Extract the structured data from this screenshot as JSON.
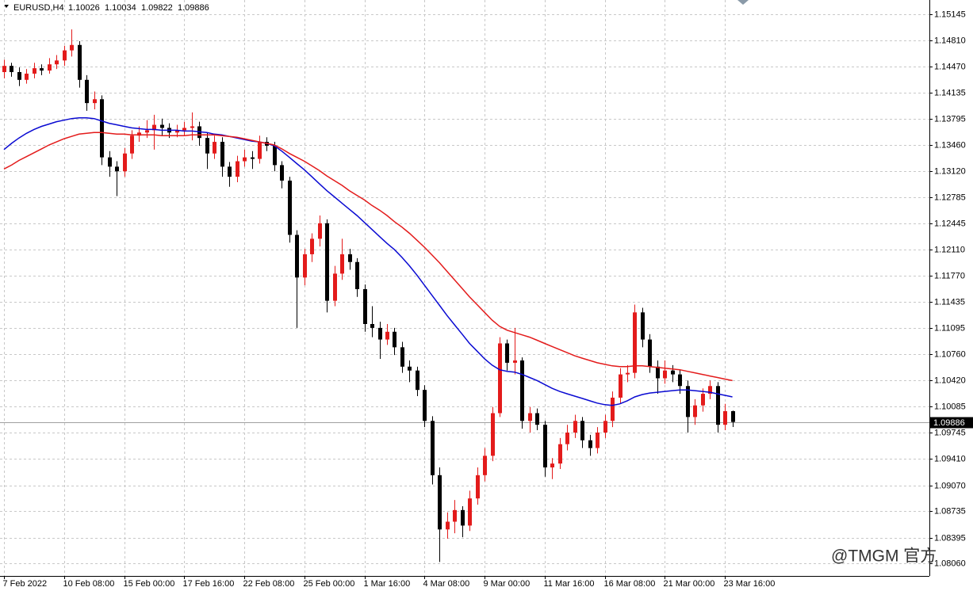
{
  "chart_data": {
    "type": "candlestick",
    "symbol": "EURUSD,H4",
    "watermark": "@TMGM 官方",
    "up_color": "#e31b1b",
    "down_color": "#000000",
    "ylim": [
      1.079,
      1.1533
    ],
    "yticks": [
      1.15145,
      {
        "value": 1.1481,
        "label": "1.14810"
      },
      {
        "value": 1.1447,
        "label": "1.14470"
      },
      1.14135,
      1.13795,
      {
        "value": 1.1346,
        "label": "1.13460"
      },
      {
        "value": 1.1312,
        "label": "1.13120"
      },
      1.12785,
      1.12445,
      {
        "value": 1.1211,
        "label": "1.12110"
      },
      {
        "value": 1.1177,
        "label": "1.11770"
      },
      1.11435,
      1.11095,
      {
        "value": 1.1076,
        "label": "1.10760"
      },
      {
        "value": 1.1042,
        "label": "1.10420"
      },
      1.10085,
      1.09745,
      {
        "value": 1.0941,
        "label": "1.09410"
      },
      {
        "value": 1.0907,
        "label": "1.09070"
      },
      1.08735,
      1.08395,
      {
        "value": 1.0806,
        "label": "1.08060"
      }
    ],
    "grid": true,
    "last_price": 1.09886,
    "categories": [
      "7 Feb 2022",
      null,
      null,
      null,
      null,
      null,
      null,
      null,
      "10 Feb 08:00",
      null,
      null,
      null,
      null,
      null,
      null,
      null,
      "15 Feb 00:00",
      null,
      null,
      null,
      null,
      null,
      null,
      null,
      "17 Feb 16:00",
      null,
      null,
      null,
      null,
      null,
      null,
      null,
      "22 Feb 08:00",
      null,
      null,
      null,
      null,
      null,
      null,
      null,
      "25 Feb 00:00",
      null,
      null,
      null,
      null,
      null,
      null,
      null,
      "1 Mar 16:00",
      null,
      null,
      null,
      null,
      null,
      null,
      null,
      "4 Mar 08:00",
      null,
      null,
      null,
      null,
      null,
      null,
      null,
      "9 Mar 00:00",
      null,
      null,
      null,
      null,
      null,
      null,
      null,
      "11 Mar 16:00",
      null,
      null,
      null,
      null,
      null,
      null,
      null,
      "16 Mar 08:00",
      null,
      null,
      null,
      null,
      null,
      null,
      null,
      "21 Mar 00:00",
      null,
      null,
      null,
      null,
      null,
      null,
      null,
      "23 Mar 16:00",
      null
    ],
    "ohlc": [
      [
        1.144,
        1.1456,
        1.1432,
        1.1448
      ],
      [
        1.1448,
        1.1452,
        1.1434,
        1.144
      ],
      [
        1.144,
        1.1446,
        1.1422,
        1.143
      ],
      [
        1.143,
        1.1444,
        1.1425,
        1.1438
      ],
      [
        1.1438,
        1.1452,
        1.1432,
        1.1445
      ],
      [
        1.1445,
        1.145,
        1.1436,
        1.1442
      ],
      [
        1.1442,
        1.1458,
        1.1438,
        1.145
      ],
      [
        1.145,
        1.1462,
        1.1444,
        1.1455
      ],
      [
        1.1455,
        1.1474,
        1.1448,
        1.1468
      ],
      [
        1.1468,
        1.1495,
        1.146,
        1.1475
      ],
      [
        1.1475,
        1.148,
        1.142,
        1.143
      ],
      [
        1.143,
        1.1436,
        1.139,
        1.14
      ],
      [
        1.14,
        1.1415,
        1.1392,
        1.1405
      ],
      [
        1.1405,
        1.141,
        1.132,
        1.133
      ],
      [
        1.133,
        1.1338,
        1.1305,
        1.1318
      ],
      [
        1.1318,
        1.1325,
        1.128,
        1.1312
      ],
      [
        1.1312,
        1.1342,
        1.1305,
        1.1335
      ],
      [
        1.1335,
        1.1365,
        1.1328,
        1.1358
      ],
      [
        1.1358,
        1.137,
        1.135,
        1.1362
      ],
      [
        1.1362,
        1.1378,
        1.1355,
        1.1365
      ],
      [
        1.1365,
        1.1385,
        1.134,
        1.1372
      ],
      [
        1.1372,
        1.138,
        1.1358,
        1.1368
      ],
      [
        1.1368,
        1.1374,
        1.1355,
        1.1362
      ],
      [
        1.1362,
        1.1372,
        1.1356,
        1.1365
      ],
      [
        1.1365,
        1.1376,
        1.1358,
        1.1368
      ],
      [
        1.1368,
        1.1388,
        1.1352,
        1.137
      ],
      [
        1.137,
        1.1376,
        1.1345,
        1.1355
      ],
      [
        1.1355,
        1.1362,
        1.1315,
        1.1335
      ],
      [
        1.1335,
        1.1358,
        1.1328,
        1.135
      ],
      [
        1.135,
        1.1356,
        1.1305,
        1.1318
      ],
      [
        1.1318,
        1.1324,
        1.1292,
        1.1305
      ],
      [
        1.1305,
        1.1332,
        1.1298,
        1.1325
      ],
      [
        1.1325,
        1.134,
        1.1318,
        1.133
      ],
      [
        1.133,
        1.1338,
        1.1315,
        1.1328
      ],
      [
        1.1328,
        1.1358,
        1.1322,
        1.135
      ],
      [
        1.135,
        1.1356,
        1.1338,
        1.1345
      ],
      [
        1.1345,
        1.135,
        1.1312,
        1.132
      ],
      [
        1.132,
        1.1325,
        1.129,
        1.13
      ],
      [
        1.13,
        1.1305,
        1.122,
        1.123
      ],
      [
        1.123,
        1.1236,
        1.111,
        1.1175
      ],
      [
        1.1175,
        1.1212,
        1.1165,
        1.1205
      ],
      [
        1.1205,
        1.1232,
        1.1195,
        1.1225
      ],
      [
        1.1225,
        1.1255,
        1.1215,
        1.1245
      ],
      [
        1.1245,
        1.125,
        1.113,
        1.1145
      ],
      [
        1.1145,
        1.119,
        1.1138,
        1.118
      ],
      [
        1.118,
        1.1225,
        1.1172,
        1.1205
      ],
      [
        1.1205,
        1.1212,
        1.1185,
        1.1195
      ],
      [
        1.1195,
        1.12,
        1.115,
        1.116
      ],
      [
        1.116,
        1.1166,
        1.1105,
        1.1115
      ],
      [
        1.1115,
        1.1138,
        1.1098,
        1.111
      ],
      [
        1.111,
        1.1118,
        1.107,
        1.1095
      ],
      [
        1.1095,
        1.1115,
        1.1088,
        1.1105
      ],
      [
        1.1105,
        1.111,
        1.1075,
        1.1085
      ],
      [
        1.1085,
        1.1092,
        1.1052,
        1.106
      ],
      [
        1.106,
        1.1068,
        1.104,
        1.1055
      ],
      [
        1.1055,
        1.106,
        1.1022,
        1.103
      ],
      [
        1.103,
        1.1036,
        1.0982,
        1.099
      ],
      [
        1.099,
        1.0996,
        1.0908,
        1.092
      ],
      [
        1.092,
        1.093,
        1.0808,
        1.085
      ],
      [
        1.085,
        1.0872,
        1.0838,
        1.086
      ],
      [
        1.086,
        1.0888,
        1.0845,
        1.0875
      ],
      [
        1.0875,
        1.088,
        1.084,
        1.0855
      ],
      [
        1.0855,
        1.09,
        1.0848,
        1.089
      ],
      [
        1.089,
        1.093,
        1.0882,
        1.092
      ],
      [
        1.092,
        1.0955,
        1.0912,
        1.0945
      ],
      [
        1.0945,
        1.1008,
        1.0938,
        1.1
      ],
      [
        1.1,
        1.1098,
        1.0995,
        1.109
      ],
      [
        1.109,
        1.1095,
        1.1055,
        1.1065
      ],
      [
        1.1065,
        1.111,
        1.105,
        1.1068
      ],
      [
        1.1068,
        1.1072,
        1.098,
        1.099
      ],
      [
        1.099,
        1.1008,
        1.0975,
        1.1
      ],
      [
        1.1,
        1.1006,
        1.0978,
        1.0985
      ],
      [
        1.0985,
        1.099,
        1.0918,
        1.093
      ],
      [
        1.093,
        1.0942,
        1.0915,
        1.0935
      ],
      [
        1.0935,
        1.0968,
        1.0928,
        1.096
      ],
      [
        1.096,
        1.0985,
        1.0952,
        1.0975
      ],
      [
        1.0975,
        1.0998,
        1.0968,
        1.099
      ],
      [
        1.099,
        1.0995,
        1.0955,
        1.0965
      ],
      [
        1.0965,
        1.0972,
        1.0945,
        1.0955
      ],
      [
        1.0955,
        1.0982,
        1.0948,
        1.0975
      ],
      [
        1.0975,
        1.0998,
        1.0968,
        1.099
      ],
      [
        1.099,
        1.1028,
        1.0982,
        1.102
      ],
      [
        1.102,
        1.1058,
        1.1012,
        1.105
      ],
      [
        1.105,
        1.1062,
        1.104,
        1.1052
      ],
      [
        1.1052,
        1.114,
        1.1045,
        1.113
      ],
      [
        1.113,
        1.1136,
        1.1085,
        1.1095
      ],
      [
        1.1095,
        1.1102,
        1.1052,
        1.106
      ],
      [
        1.106,
        1.1068,
        1.1025,
        1.1045
      ],
      [
        1.1045,
        1.1068,
        1.1038,
        1.1055
      ],
      [
        1.1055,
        1.1062,
        1.104,
        1.105
      ],
      [
        1.105,
        1.1056,
        1.1025,
        1.1035
      ],
      [
        1.1035,
        1.1042,
        1.0975,
        1.0995
      ],
      [
        1.0995,
        1.1018,
        1.0985,
        1.101
      ],
      [
        1.101,
        1.1032,
        1.1002,
        1.1025
      ],
      [
        1.1025,
        1.1042,
        1.1018,
        1.1035
      ],
      [
        1.1035,
        1.104,
        1.0975,
        1.0985
      ],
      [
        1.0985,
        1.1012,
        1.0978,
        1.10026
      ],
      [
        1.10026,
        1.10034,
        1.09822,
        1.09886
      ]
    ],
    "ma_lines": [
      {
        "color": "#0a0ad2",
        "values": [
          1.134,
          1.1348,
          1.1355,
          1.1361,
          1.1366,
          1.137,
          1.1373,
          1.1376,
          1.1378,
          1.138,
          1.1381,
          1.1381,
          1.138,
          1.1377,
          1.1374,
          1.1372,
          1.137,
          1.1368,
          1.1367,
          1.1366,
          1.1366,
          1.1365,
          1.1365,
          1.1365,
          1.1364,
          1.1364,
          1.1363,
          1.1362,
          1.136,
          1.1359,
          1.1357,
          1.1355,
          1.1353,
          1.1351,
          1.135,
          1.1348,
          1.1345,
          1.1338,
          1.133,
          1.1322,
          1.1314,
          1.1305,
          1.1296,
          1.1287,
          1.1279,
          1.1271,
          1.1263,
          1.1255,
          1.1246,
          1.1237,
          1.1228,
          1.1219,
          1.1211,
          1.1201,
          1.119,
          1.1178,
          1.1165,
          1.1152,
          1.1139,
          1.1126,
          1.1114,
          1.1102,
          1.109,
          1.108,
          1.107,
          1.1062,
          1.1056,
          1.1054,
          1.1053,
          1.105,
          1.1046,
          1.1042,
          1.1037,
          1.1032,
          1.1028,
          1.1025,
          1.1022,
          1.1019,
          1.1016,
          1.1013,
          1.1011,
          1.101,
          1.1012,
          1.1016,
          1.1021,
          1.1024,
          1.1026,
          1.1027,
          1.1028,
          1.1029,
          1.103,
          1.103,
          1.1029,
          1.1028,
          1.1027,
          1.1025,
          1.1023,
          1.1021
        ]
      },
      {
        "color": "#e31b1b",
        "values": [
          1.1315,
          1.132,
          1.1326,
          1.1331,
          1.1336,
          1.1341,
          1.1346,
          1.135,
          1.1354,
          1.1357,
          1.136,
          1.1361,
          1.1362,
          1.1362,
          1.1361,
          1.136,
          1.136,
          1.1359,
          1.1359,
          1.1359,
          1.1359,
          1.1358,
          1.1358,
          1.1358,
          1.1358,
          1.1359,
          1.1359,
          1.1359,
          1.1359,
          1.1358,
          1.1357,
          1.1356,
          1.1354,
          1.1352,
          1.135,
          1.1348,
          1.1346,
          1.1341,
          1.1335,
          1.133,
          1.1325,
          1.1319,
          1.1313,
          1.1306,
          1.13,
          1.1294,
          1.1287,
          1.1281,
          1.1275,
          1.1268,
          1.1262,
          1.1255,
          1.1247,
          1.124,
          1.1232,
          1.1223,
          1.1214,
          1.1204,
          1.1194,
          1.1183,
          1.1172,
          1.1161,
          1.115,
          1.114,
          1.113,
          1.112,
          1.1112,
          1.1107,
          1.1104,
          1.1101,
          1.1098,
          1.1094,
          1.109,
          1.1086,
          1.1082,
          1.1078,
          1.1074,
          1.1071,
          1.1068,
          1.1065,
          1.1063,
          1.1061,
          1.106,
          1.106,
          1.1061,
          1.1061,
          1.106,
          1.1059,
          1.1058,
          1.1057,
          1.1056,
          1.1054,
          1.1052,
          1.105,
          1.1048,
          1.1046,
          1.1044,
          1.1042
        ]
      }
    ]
  }
}
